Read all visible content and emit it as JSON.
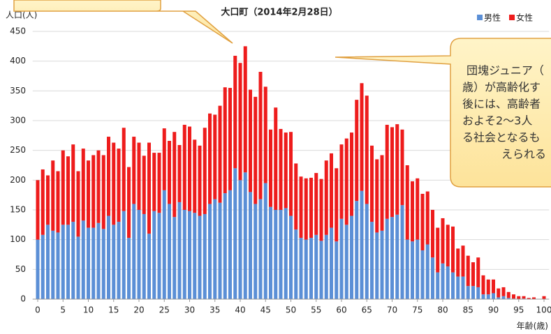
{
  "chart_data": {
    "type": "bar",
    "stacked": true,
    "title": "大口町（2014年2月28日）",
    "y_label": "人口(人)",
    "x_label": "年齢(歳)",
    "x": [
      0,
      1,
      2,
      3,
      4,
      5,
      6,
      7,
      8,
      9,
      10,
      11,
      12,
      13,
      14,
      15,
      16,
      17,
      18,
      19,
      20,
      21,
      22,
      23,
      24,
      25,
      26,
      27,
      28,
      29,
      30,
      31,
      32,
      33,
      34,
      35,
      36,
      37,
      38,
      39,
      40,
      41,
      42,
      43,
      44,
      45,
      46,
      47,
      48,
      49,
      50,
      51,
      52,
      53,
      54,
      55,
      56,
      57,
      58,
      59,
      60,
      61,
      62,
      63,
      64,
      65,
      66,
      67,
      68,
      69,
      70,
      71,
      72,
      73,
      74,
      75,
      76,
      77,
      78,
      79,
      80,
      81,
      82,
      83,
      84,
      85,
      86,
      87,
      88,
      89,
      90,
      91,
      92,
      93,
      94,
      95,
      96,
      97,
      98,
      99,
      100
    ],
    "series": [
      {
        "name": "男性",
        "color": "#5b8fd6",
        "values": [
          100,
          108,
          125,
          115,
          112,
          125,
          125,
          130,
          105,
          132,
          120,
          120,
          128,
          118,
          140,
          125,
          130,
          148,
          103,
          160,
          150,
          143,
          110,
          148,
          145,
          183,
          160,
          138,
          163,
          150,
          148,
          145,
          140,
          143,
          160,
          168,
          162,
          178,
          183,
          220,
          200,
          213,
          180,
          160,
          168,
          195,
          155,
          150,
          150,
          153,
          140,
          117,
          103,
          100,
          103,
          108,
          98,
          108,
          120,
          97,
          135,
          125,
          140,
          165,
          182,
          160,
          130,
          112,
          115,
          135,
          138,
          142,
          158,
          100,
          97,
          100,
          82,
          92,
          70,
          45,
          60,
          55,
          45,
          38,
          38,
          22,
          22,
          20,
          8,
          8,
          10,
          3,
          5,
          2,
          1,
          0,
          1,
          0,
          0,
          0,
          0
        ]
      },
      {
        "name": "女性",
        "color": "#ee1c1c",
        "values": [
          100,
          110,
          83,
          118,
          103,
          125,
          115,
          130,
          110,
          121,
          113,
          122,
          122,
          124,
          133,
          138,
          123,
          140,
          119,
          113,
          113,
          98,
          153,
          98,
          101,
          104,
          106,
          143,
          96,
          143,
          142,
          123,
          118,
          145,
          152,
          142,
          163,
          178,
          172,
          189,
          197,
          212,
          172,
          180,
          214,
          162,
          130,
          172,
          136,
          127,
          141,
          111,
          103,
          103,
          101,
          104,
          104,
          125,
          125,
          123,
          125,
          145,
          140,
          170,
          181,
          182,
          128,
          123,
          127,
          158,
          151,
          152,
          127,
          125,
          101,
          103,
          95,
          89,
          80,
          75,
          76,
          70,
          77,
          47,
          52,
          51,
          40,
          50,
          32,
          25,
          23,
          15,
          15,
          10,
          7,
          5,
          4,
          2,
          3,
          0,
          5
        ]
      }
    ],
    "xlim": [
      -1,
      101
    ],
    "xticks": [
      0,
      5,
      10,
      15,
      20,
      25,
      30,
      35,
      40,
      45,
      50,
      55,
      60,
      65,
      70,
      75,
      80,
      85,
      90,
      95,
      100
    ],
    "ylim": [
      0,
      450
    ],
    "yticks": [
      0,
      50,
      100,
      150,
      200,
      250,
      300,
      350,
      400,
      450
    ],
    "grid": true,
    "legend": "upper right",
    "annotations": [
      "団塊ジュニア（",
      "歳）が高齢化す",
      "後には、高齢者",
      "およそ2～3人",
      "る社会となるも",
      "えられる"
    ]
  }
}
